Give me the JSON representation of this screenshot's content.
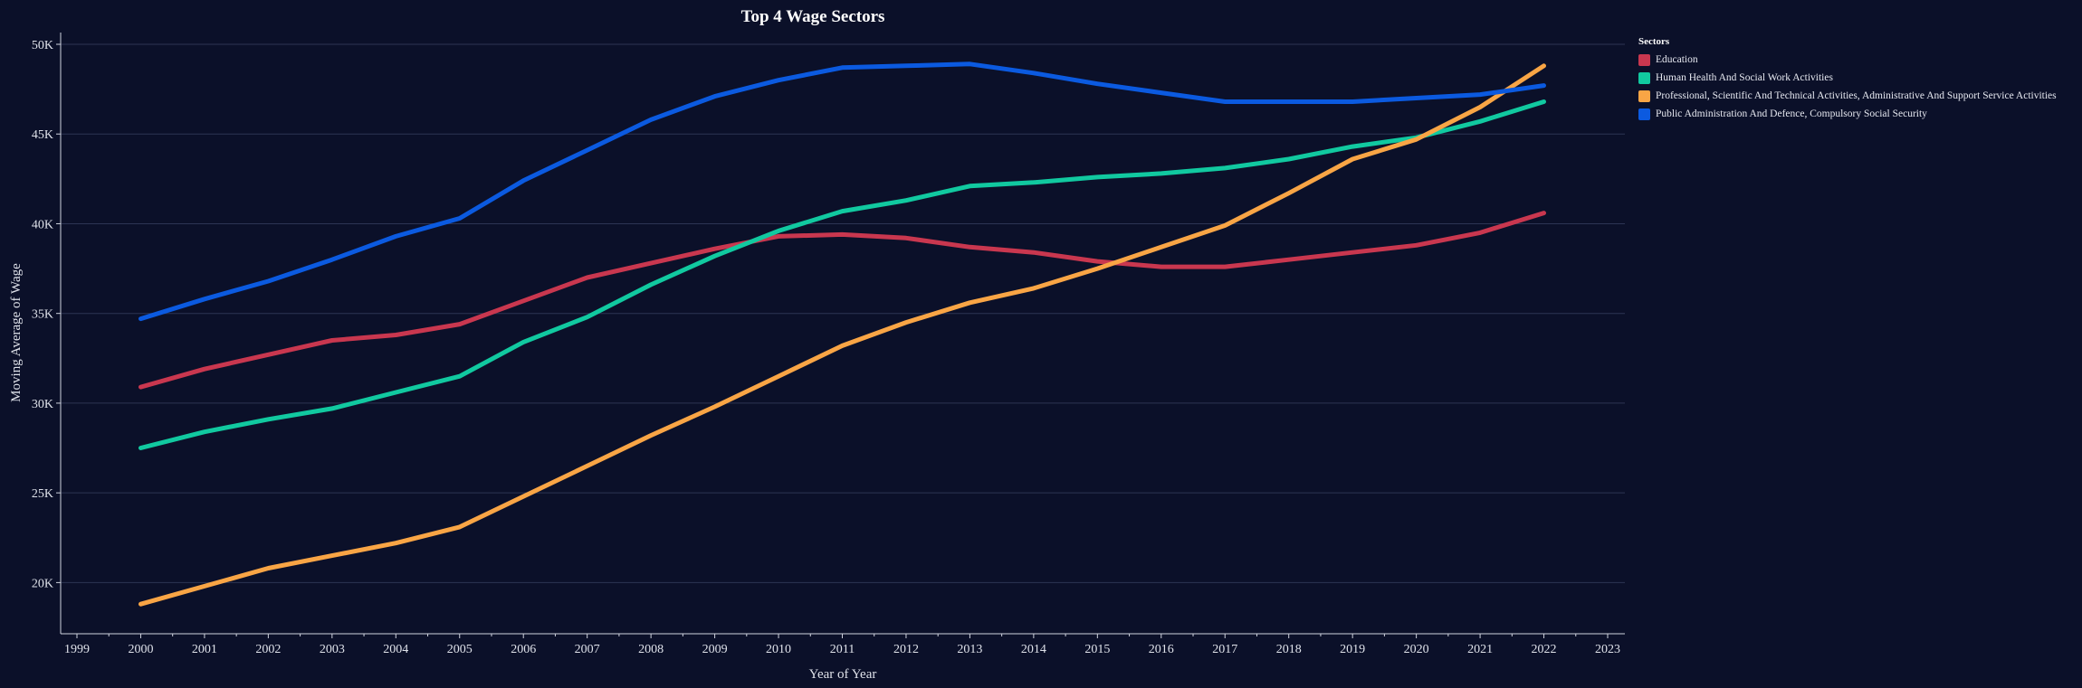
{
  "chart_data": {
    "type": "line",
    "title": "Top 4 Wage Sectors",
    "xlabel": "Year of Year",
    "ylabel": "Moving Average of Wage",
    "xlim": [
      1999,
      2023
    ],
    "ylim": [
      17500,
      50000
    ],
    "x_ticks": [
      "1999",
      "2000",
      "2001",
      "2002",
      "2003",
      "2004",
      "2005",
      "2006",
      "2007",
      "2008",
      "2009",
      "2010",
      "2011",
      "2012",
      "2013",
      "2014",
      "2015",
      "2016",
      "2017",
      "2018",
      "2019",
      "2020",
      "2021",
      "2022",
      "2023"
    ],
    "y_ticks": [
      {
        "value": 20000,
        "label": "20K"
      },
      {
        "value": 25000,
        "label": "25K"
      },
      {
        "value": 30000,
        "label": "30K"
      },
      {
        "value": 35000,
        "label": "35K"
      },
      {
        "value": 40000,
        "label": "40K"
      },
      {
        "value": 45000,
        "label": "45K"
      },
      {
        "value": 50000,
        "label": "50K"
      }
    ],
    "grid": true,
    "legend_title": "Sectors",
    "legend_position": "top-right",
    "x": [
      2000,
      2001,
      2002,
      2003,
      2004,
      2005,
      2006,
      2007,
      2008,
      2009,
      2010,
      2011,
      2012,
      2013,
      2014,
      2015,
      2016,
      2017,
      2018,
      2019,
      2020,
      2021,
      2022
    ],
    "series": [
      {
        "name": "Education",
        "color": "#c9374f",
        "values": [
          30900,
          31900,
          32700,
          33500,
          33800,
          34400,
          35700,
          37000,
          37800,
          38600,
          39300,
          39400,
          39200,
          38700,
          38400,
          37900,
          37600,
          37600,
          38000,
          38400,
          38800,
          39500,
          40600
        ]
      },
      {
        "name": "Human Health And Social Work Activities",
        "color": "#11c9a0",
        "values": [
          27500,
          28400,
          29100,
          29700,
          30600,
          31500,
          33400,
          34800,
          36600,
          38200,
          39600,
          40700,
          41300,
          42100,
          42300,
          42600,
          42800,
          43100,
          43600,
          44300,
          44800,
          45700,
          46800
        ]
      },
      {
        "name": "Professional, Scientific And Technical Activities, Administrative And Support Service Activities",
        "color": "#f9a545",
        "values": [
          18800,
          19800,
          20800,
          21500,
          22200,
          23100,
          24800,
          26500,
          28200,
          29800,
          31500,
          33200,
          34500,
          35600,
          36400,
          37500,
          38700,
          39900,
          41700,
          43600,
          44700,
          46500,
          48800
        ]
      },
      {
        "name": "Public Administration And Defence, Compulsory Social Security",
        "color": "#0b5ae0",
        "values": [
          34700,
          35800,
          36800,
          38000,
          39300,
          40300,
          42400,
          44100,
          45800,
          47100,
          48000,
          48700,
          48800,
          48900,
          48400,
          47800,
          47300,
          46800,
          46800,
          46800,
          47000,
          47200,
          47700
        ]
      }
    ]
  }
}
